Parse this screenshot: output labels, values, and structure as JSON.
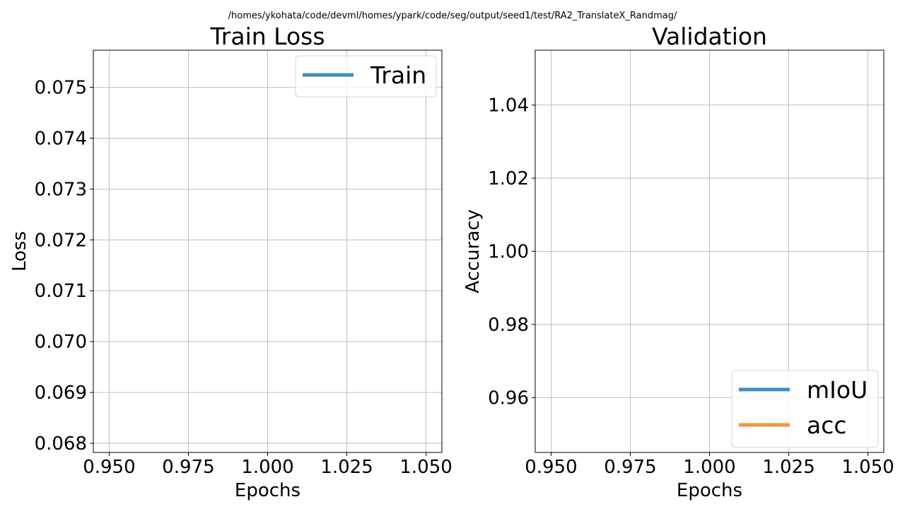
{
  "figure": {
    "suptitle": "/homes/ykohata/code/devml/homes/ypark/code/seg/output/seed1/test/RA2_TranslateX_Randmag/"
  },
  "chart_data": [
    {
      "type": "line",
      "title": "Train Loss",
      "xlabel": "Epochs",
      "ylabel": "Loss",
      "xlim": [
        0.945,
        1.055
      ],
      "ylim": [
        0.06782,
        0.07573
      ],
      "xticks": [
        0.95,
        0.975,
        1.0,
        1.025,
        1.05
      ],
      "xtick_labels": [
        "0.950",
        "0.975",
        "1.000",
        "1.025",
        "1.050"
      ],
      "yticks": [
        0.068,
        0.069,
        0.07,
        0.071,
        0.072,
        0.073,
        0.074,
        0.075
      ],
      "ytick_labels": [
        "0.068",
        "0.069",
        "0.070",
        "0.071",
        "0.072",
        "0.073",
        "0.074",
        "0.075"
      ],
      "grid": true,
      "legend_position": "upper right",
      "series": [
        {
          "name": "Train",
          "color": "#3f8fc4",
          "x": [],
          "y": []
        }
      ]
    },
    {
      "type": "line",
      "title": "Validation",
      "xlabel": "Epochs",
      "ylabel": "Accuracy",
      "xlim": [
        0.945,
        1.055
      ],
      "ylim": [
        0.945,
        1.055
      ],
      "xticks": [
        0.95,
        0.975,
        1.0,
        1.025,
        1.05
      ],
      "xtick_labels": [
        "0.950",
        "0.975",
        "1.000",
        "1.025",
        "1.050"
      ],
      "yticks": [
        0.96,
        0.98,
        1.0,
        1.02,
        1.04
      ],
      "ytick_labels": [
        "0.96",
        "0.98",
        "1.00",
        "1.02",
        "1.04"
      ],
      "grid": true,
      "legend_position": "lower right",
      "series": [
        {
          "name": "mIoU",
          "color": "#3f8fc4",
          "x": [],
          "y": []
        },
        {
          "name": "acc",
          "color": "#f5953e",
          "x": [],
          "y": []
        }
      ]
    }
  ]
}
